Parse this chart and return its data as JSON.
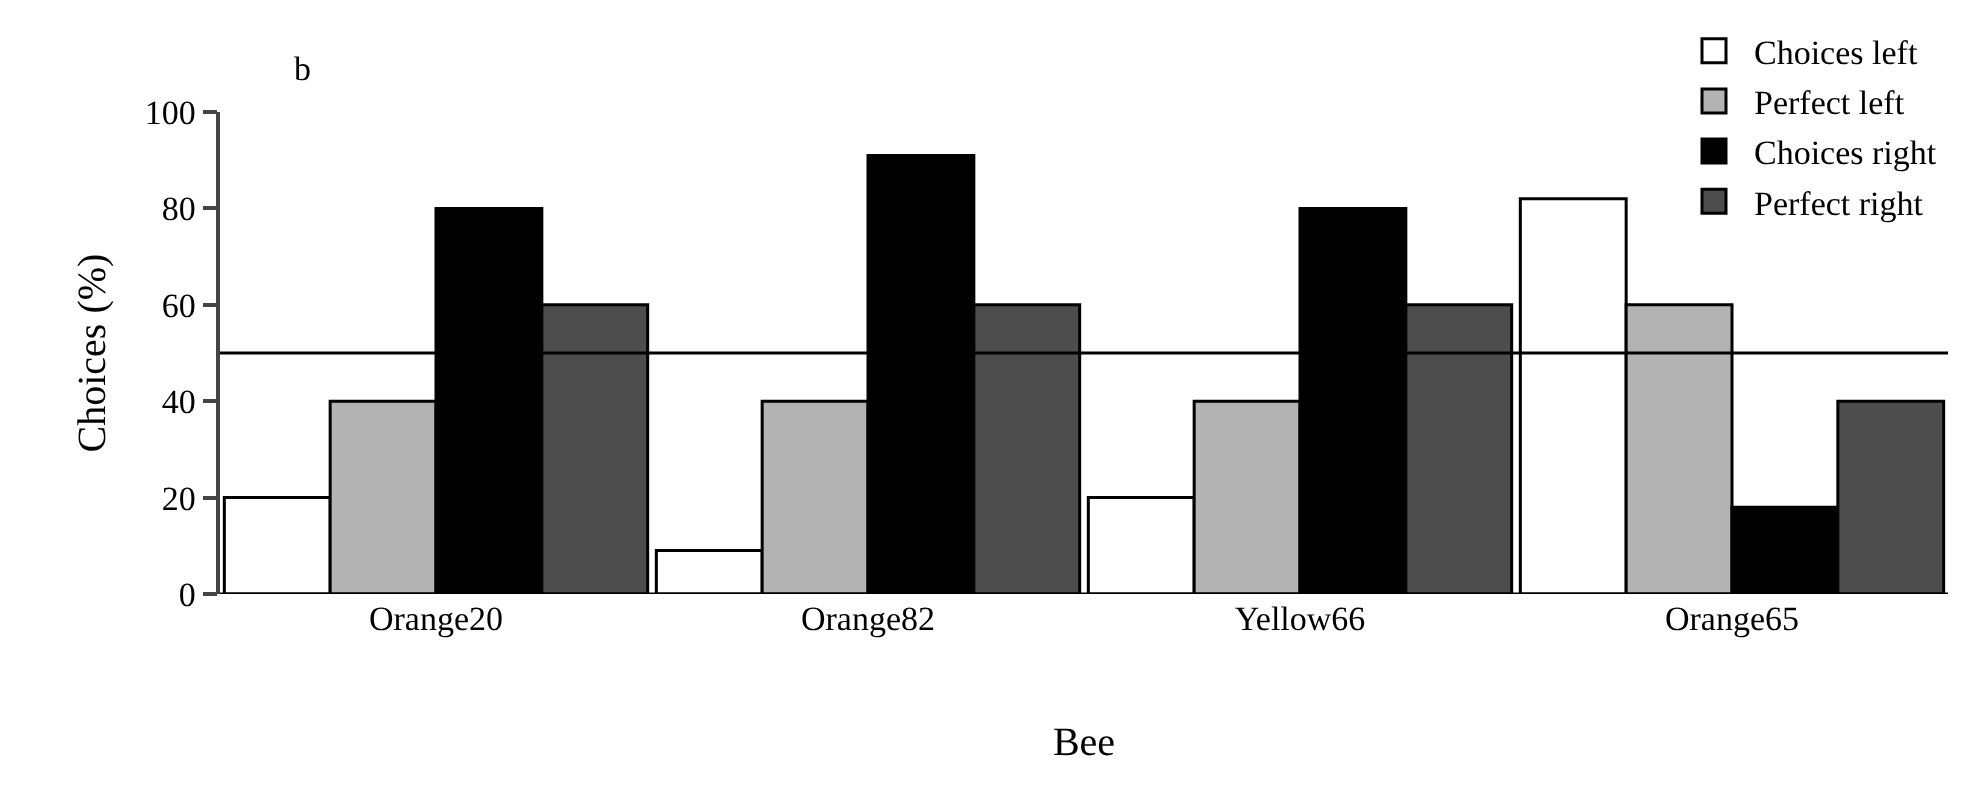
{
  "chart_data": {
    "type": "bar",
    "xlabel": "Bee",
    "ylabel": "Choices (%)",
    "annotations": [
      "b"
    ],
    "categories": [
      "Orange20",
      "Orange82",
      "Yellow66",
      "Orange65"
    ],
    "series": [
      {
        "name": "Choices left",
        "color": "#ffffff",
        "values": [
          20,
          9,
          20,
          82
        ]
      },
      {
        "name": "Perfect left",
        "color": "#b3b3b3",
        "values": [
          40,
          40,
          40,
          60
        ]
      },
      {
        "name": "Choices right",
        "color": "#000000",
        "values": [
          80,
          91,
          80,
          18
        ]
      },
      {
        "name": "Perfect right",
        "color": "#4d4d4d",
        "values": [
          60,
          60,
          60,
          40
        ]
      }
    ],
    "ylim": [
      0,
      100
    ],
    "yticks": [
      0,
      20,
      40,
      60,
      80,
      100
    ],
    "ref_lines": [
      {
        "axis": "y",
        "value": 50,
        "color": "#000000"
      }
    ],
    "grid": false,
    "legend": "top right"
  }
}
